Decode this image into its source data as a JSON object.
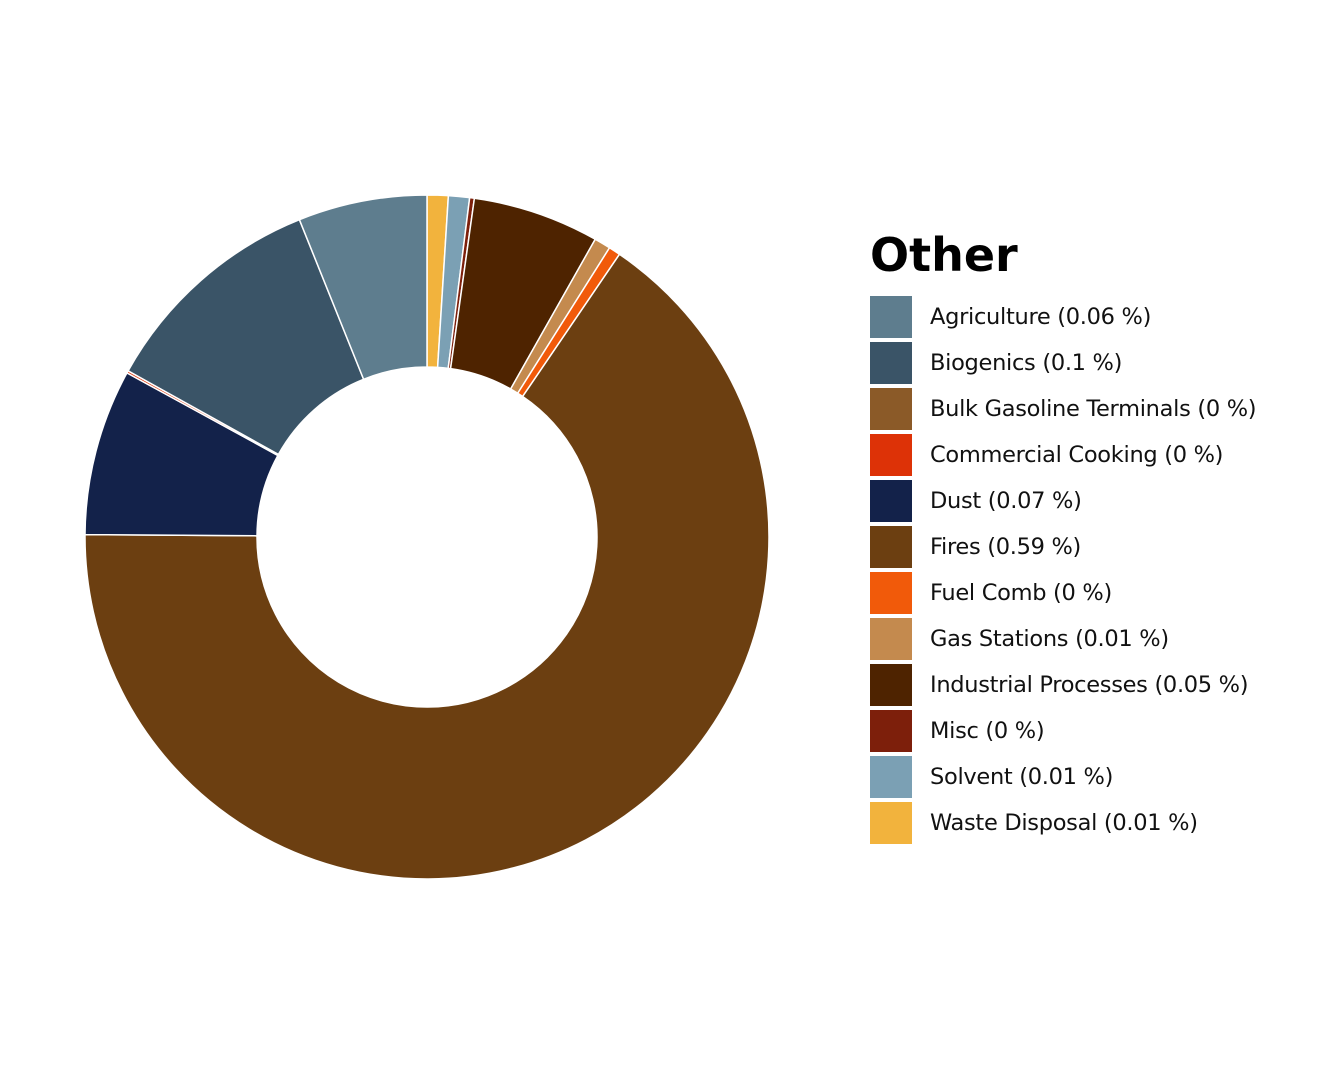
{
  "chart_data": {
    "type": "pie",
    "variant": "donut",
    "title": "",
    "legend_title": "Other",
    "legend_position": "right",
    "slices": [
      {
        "label": "Waste Disposal (0.01 %)",
        "value": 0.009,
        "color": "#f2b33d"
      },
      {
        "label": "Solvent (0.01 %)",
        "value": 0.009,
        "color": "#7ba0b4"
      },
      {
        "label": "Misc (0 %)",
        "value": 0.002,
        "color": "#7d1f0b"
      },
      {
        "label": "Industrial Processes (0.05 %)",
        "value": 0.054,
        "color": "#4e2300"
      },
      {
        "label": "Gas Stations (0.01 %)",
        "value": 0.007,
        "color": "#c48a4e"
      },
      {
        "label": "Fuel Comb (0 %)",
        "value": 0.005,
        "color": "#f15a0a"
      },
      {
        "label": "Fires (0.59 %)",
        "value": 0.593,
        "color": "#6c3f11"
      },
      {
        "label": "Dust (0.07 %)",
        "value": 0.071,
        "color": "#13224a"
      },
      {
        "label": "Commercial Cooking (0 %)",
        "value": 0.001,
        "color": "#dd3207"
      },
      {
        "label": "Bulk Gasoline Terminals (0 %)",
        "value": 0.0,
        "color": "#8b5a28"
      },
      {
        "label": "Biogenics (0.1 %)",
        "value": 0.098,
        "color": "#3a5467"
      },
      {
        "label": "Agriculture (0.06 %)",
        "value": 0.055,
        "color": "#5e7d8e"
      }
    ],
    "legend_order": [
      "Agriculture (0.06 %)",
      "Biogenics (0.1 %)",
      "Bulk Gasoline Terminals (0 %)",
      "Commercial Cooking (0 %)",
      "Dust (0.07 %)",
      "Fires (0.59 %)",
      "Fuel Comb (0 %)",
      "Gas Stations (0.01 %)",
      "Industrial Processes (0.05 %)",
      "Misc (0 %)",
      "Solvent (0.01 %)",
      "Waste Disposal (0.01 %)"
    ]
  }
}
